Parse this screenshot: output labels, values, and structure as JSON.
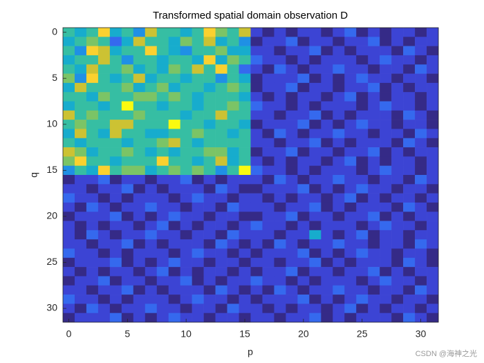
{
  "chart_data": {
    "type": "heatmap",
    "title": "Transformed spatial domain observation D",
    "xlabel": "p",
    "ylabel": "q",
    "watermark": "CSDN @海神之光",
    "colormap": "parula",
    "y_reversed": true,
    "xlim": [
      -0.5,
      31.5
    ],
    "ylim": [
      -0.5,
      31.5
    ],
    "xticks": [
      0,
      5,
      10,
      15,
      20,
      25,
      30
    ],
    "yticks": [
      0,
      5,
      10,
      15,
      20,
      25,
      30
    ],
    "values": [
      [
        0.6,
        0.5,
        0.6,
        0.9,
        0.5,
        0.6,
        0.4,
        0.8,
        0.6,
        0.6,
        0.5,
        0.6,
        0.9,
        0.7,
        0.6,
        0.8,
        0.2,
        0.1,
        0.2,
        0.1,
        0.2,
        0.2,
        0.1,
        0.2,
        0.3,
        0.1,
        0.2,
        0.1,
        0.2,
        0.2,
        0.1,
        0.2
      ],
      [
        0.5,
        0.6,
        0.7,
        0.6,
        0.3,
        0.5,
        0.8,
        0.6,
        0.6,
        0.5,
        0.7,
        0.6,
        0.8,
        0.5,
        0.6,
        0.4,
        0.1,
        0.2,
        0.2,
        0.3,
        0.1,
        0.2,
        0.2,
        0.1,
        0.2,
        0.2,
        0.3,
        0.1,
        0.2,
        0.1,
        0.2,
        0.2
      ],
      [
        0.6,
        0.4,
        0.9,
        0.8,
        0.5,
        0.6,
        0.6,
        0.9,
        0.6,
        0.5,
        0.4,
        0.6,
        0.6,
        0.7,
        0.5,
        0.5,
        0.2,
        0.2,
        0.1,
        0.2,
        0.2,
        0.3,
        0.1,
        0.2,
        0.1,
        0.2,
        0.2,
        0.2,
        0.1,
        0.3,
        0.2,
        0.1
      ],
      [
        0.5,
        0.6,
        0.6,
        0.8,
        0.6,
        0.4,
        0.6,
        0.6,
        0.5,
        0.6,
        0.6,
        0.5,
        0.9,
        0.5,
        0.7,
        0.6,
        0.3,
        0.2,
        0.2,
        0.1,
        0.2,
        0.1,
        0.2,
        0.2,
        0.2,
        0.1,
        0.2,
        0.3,
        0.2,
        0.2,
        0.1,
        0.2
      ],
      [
        0.6,
        0.5,
        0.8,
        0.6,
        0.6,
        0.7,
        0.5,
        0.6,
        0.5,
        0.7,
        0.6,
        0.8,
        0.6,
        0.9,
        0.6,
        0.3,
        0.2,
        0.1,
        0.3,
        0.2,
        0.1,
        0.2,
        0.2,
        0.3,
        0.2,
        0.2,
        0.1,
        0.2,
        0.2,
        0.1,
        0.3,
        0.2
      ],
      [
        0.7,
        0.4,
        0.9,
        0.6,
        0.5,
        0.6,
        0.8,
        0.5,
        0.6,
        0.6,
        0.5,
        0.6,
        0.6,
        0.4,
        0.6,
        0.5,
        0.1,
        0.2,
        0.2,
        0.2,
        0.3,
        0.1,
        0.2,
        0.1,
        0.2,
        0.3,
        0.2,
        0.2,
        0.1,
        0.2,
        0.2,
        0.1
      ],
      [
        0.5,
        0.8,
        0.6,
        0.6,
        0.6,
        0.7,
        0.5,
        0.6,
        0.7,
        0.5,
        0.6,
        0.6,
        0.5,
        0.6,
        0.7,
        0.6,
        0.1,
        0.2,
        0.2,
        0.3,
        0.1,
        0.2,
        0.2,
        0.1,
        0.2,
        0.2,
        0.3,
        0.1,
        0.2,
        0.1,
        0.2,
        0.2
      ],
      [
        0.6,
        0.6,
        0.5,
        0.7,
        0.6,
        0.6,
        0.7,
        0.7,
        0.6,
        0.7,
        0.6,
        0.5,
        0.6,
        0.6,
        0.6,
        0.5,
        0.2,
        0.1,
        0.2,
        0.1,
        0.2,
        0.2,
        0.1,
        0.2,
        0.3,
        0.1,
        0.2,
        0.1,
        0.2,
        0.2,
        0.1,
        0.2
      ],
      [
        0.5,
        0.6,
        0.6,
        0.5,
        0.6,
        1.0,
        0.6,
        0.6,
        0.5,
        0.6,
        0.6,
        0.5,
        0.6,
        0.6,
        0.7,
        0.6,
        0.3,
        0.2,
        0.2,
        0.1,
        0.2,
        0.1,
        0.2,
        0.2,
        0.2,
        0.1,
        0.2,
        0.3,
        0.2,
        0.2,
        0.1,
        0.2
      ],
      [
        0.8,
        0.6,
        0.7,
        0.6,
        0.6,
        0.6,
        0.7,
        0.6,
        0.6,
        0.6,
        0.5,
        0.6,
        0.6,
        0.8,
        0.6,
        0.6,
        0.2,
        0.2,
        0.1,
        0.2,
        0.2,
        0.3,
        0.1,
        0.2,
        0.1,
        0.2,
        0.2,
        0.2,
        0.1,
        0.3,
        0.2,
        0.1
      ],
      [
        0.6,
        0.7,
        0.6,
        0.6,
        0.8,
        0.8,
        0.6,
        0.6,
        0.6,
        1.0,
        0.6,
        0.6,
        0.5,
        0.6,
        0.6,
        0.5,
        0.1,
        0.2,
        0.2,
        0.2,
        0.3,
        0.1,
        0.2,
        0.1,
        0.2,
        0.3,
        0.2,
        0.2,
        0.1,
        0.2,
        0.2,
        0.1
      ],
      [
        0.5,
        0.8,
        0.6,
        0.5,
        0.8,
        0.6,
        0.6,
        0.5,
        0.5,
        0.6,
        0.6,
        0.7,
        0.6,
        0.6,
        0.5,
        0.6,
        0.2,
        0.1,
        0.3,
        0.2,
        0.1,
        0.2,
        0.2,
        0.3,
        0.2,
        0.2,
        0.1,
        0.2,
        0.2,
        0.1,
        0.3,
        0.2
      ],
      [
        0.6,
        0.5,
        0.6,
        0.6,
        0.6,
        0.5,
        0.6,
        0.6,
        0.7,
        0.8,
        0.6,
        0.5,
        0.6,
        0.6,
        0.6,
        0.6,
        0.2,
        0.2,
        0.1,
        0.2,
        0.2,
        0.3,
        0.1,
        0.2,
        0.1,
        0.2,
        0.2,
        0.2,
        0.1,
        0.3,
        0.2,
        0.1
      ],
      [
        0.8,
        0.7,
        0.5,
        0.6,
        0.6,
        0.7,
        0.6,
        0.5,
        0.6,
        0.5,
        0.6,
        0.6,
        0.7,
        0.7,
        0.5,
        0.6,
        0.1,
        0.2,
        0.2,
        0.3,
        0.1,
        0.2,
        0.2,
        0.1,
        0.2,
        0.2,
        0.3,
        0.1,
        0.2,
        0.1,
        0.2,
        0.2
      ],
      [
        0.7,
        0.9,
        0.6,
        0.6,
        0.5,
        0.6,
        0.6,
        0.6,
        0.9,
        0.6,
        0.6,
        0.5,
        0.6,
        0.8,
        0.5,
        0.6,
        0.2,
        0.1,
        0.2,
        0.1,
        0.2,
        0.2,
        0.1,
        0.2,
        0.3,
        0.1,
        0.2,
        0.1,
        0.2,
        0.2,
        0.1,
        0.2
      ],
      [
        0.4,
        0.6,
        0.5,
        0.9,
        0.6,
        0.7,
        0.7,
        0.5,
        0.6,
        0.7,
        0.6,
        0.7,
        0.6,
        0.4,
        0.6,
        1.0,
        0.3,
        0.2,
        0.2,
        0.1,
        0.2,
        0.1,
        0.2,
        0.2,
        0.2,
        0.1,
        0.2,
        0.3,
        0.2,
        0.2,
        0.1,
        0.2
      ],
      [
        0.1,
        0.2,
        0.2,
        0.3,
        0.1,
        0.2,
        0.2,
        0.1,
        0.2,
        0.2,
        0.3,
        0.1,
        0.2,
        0.1,
        0.2,
        0.2,
        0.2,
        0.1,
        0.3,
        0.2,
        0.1,
        0.2,
        0.2,
        0.3,
        0.2,
        0.2,
        0.1,
        0.2,
        0.2,
        0.1,
        0.3,
        0.2
      ],
      [
        0.2,
        0.2,
        0.1,
        0.2,
        0.2,
        0.3,
        0.1,
        0.2,
        0.1,
        0.2,
        0.2,
        0.2,
        0.1,
        0.3,
        0.2,
        0.1,
        0.1,
        0.2,
        0.2,
        0.2,
        0.3,
        0.1,
        0.2,
        0.1,
        0.2,
        0.3,
        0.2,
        0.2,
        0.1,
        0.2,
        0.2,
        0.1
      ],
      [
        0.3,
        0.2,
        0.2,
        0.1,
        0.2,
        0.1,
        0.2,
        0.2,
        0.2,
        0.1,
        0.2,
        0.3,
        0.2,
        0.2,
        0.1,
        0.2,
        0.2,
        0.1,
        0.2,
        0.1,
        0.2,
        0.2,
        0.1,
        0.2,
        0.3,
        0.1,
        0.2,
        0.1,
        0.2,
        0.2,
        0.1,
        0.2
      ],
      [
        0.2,
        0.1,
        0.3,
        0.2,
        0.1,
        0.2,
        0.2,
        0.3,
        0.2,
        0.2,
        0.1,
        0.2,
        0.2,
        0.1,
        0.3,
        0.2,
        0.2,
        0.2,
        0.1,
        0.2,
        0.2,
        0.3,
        0.1,
        0.2,
        0.1,
        0.2,
        0.2,
        0.2,
        0.1,
        0.3,
        0.2,
        0.1
      ],
      [
        0.1,
        0.2,
        0.2,
        0.2,
        0.3,
        0.1,
        0.2,
        0.1,
        0.2,
        0.3,
        0.2,
        0.2,
        0.1,
        0.2,
        0.2,
        0.1,
        0.1,
        0.2,
        0.2,
        0.3,
        0.1,
        0.2,
        0.2,
        0.1,
        0.2,
        0.2,
        0.3,
        0.1,
        0.2,
        0.1,
        0.2,
        0.2
      ],
      [
        0.2,
        0.1,
        0.2,
        0.1,
        0.2,
        0.2,
        0.1,
        0.2,
        0.3,
        0.1,
        0.2,
        0.1,
        0.2,
        0.2,
        0.1,
        0.2,
        0.3,
        0.2,
        0.2,
        0.1,
        0.2,
        0.1,
        0.2,
        0.2,
        0.2,
        0.1,
        0.2,
        0.3,
        0.2,
        0.2,
        0.1,
        0.2
      ],
      [
        0.2,
        0.1,
        0.3,
        0.2,
        0.1,
        0.2,
        0.2,
        0.3,
        0.2,
        0.2,
        0.1,
        0.2,
        0.2,
        0.1,
        0.3,
        0.2,
        0.2,
        0.2,
        0.1,
        0.2,
        0.2,
        0.5,
        0.2,
        0.1,
        0.2,
        0.3,
        0.1,
        0.2,
        0.2,
        0.1,
        0.2,
        0.2
      ],
      [
        0.2,
        0.2,
        0.1,
        0.2,
        0.2,
        0.3,
        0.1,
        0.2,
        0.1,
        0.2,
        0.2,
        0.2,
        0.1,
        0.3,
        0.2,
        0.1,
        0.2,
        0.1,
        0.3,
        0.2,
        0.1,
        0.2,
        0.2,
        0.3,
        0.2,
        0.2,
        0.1,
        0.2,
        0.2,
        0.1,
        0.3,
        0.2
      ],
      [
        0.3,
        0.2,
        0.2,
        0.1,
        0.2,
        0.1,
        0.2,
        0.2,
        0.2,
        0.1,
        0.2,
        0.3,
        0.2,
        0.2,
        0.1,
        0.2,
        0.1,
        0.2,
        0.2,
        0.2,
        0.3,
        0.1,
        0.2,
        0.1,
        0.2,
        0.3,
        0.2,
        0.2,
        0.1,
        0.2,
        0.2,
        0.1
      ],
      [
        0.1,
        0.2,
        0.2,
        0.2,
        0.3,
        0.1,
        0.2,
        0.1,
        0.2,
        0.3,
        0.2,
        0.2,
        0.1,
        0.2,
        0.2,
        0.1,
        0.2,
        0.2,
        0.1,
        0.2,
        0.2,
        0.3,
        0.1,
        0.2,
        0.1,
        0.2,
        0.2,
        0.2,
        0.1,
        0.3,
        0.2,
        0.1
      ],
      [
        0.2,
        0.1,
        0.2,
        0.1,
        0.2,
        0.2,
        0.1,
        0.2,
        0.3,
        0.1,
        0.2,
        0.1,
        0.2,
        0.2,
        0.1,
        0.2,
        0.1,
        0.2,
        0.2,
        0.3,
        0.1,
        0.2,
        0.2,
        0.1,
        0.2,
        0.2,
        0.3,
        0.1,
        0.2,
        0.1,
        0.2,
        0.2
      ],
      [
        0.1,
        0.2,
        0.2,
        0.3,
        0.1,
        0.2,
        0.2,
        0.1,
        0.2,
        0.2,
        0.3,
        0.1,
        0.2,
        0.1,
        0.2,
        0.2,
        0.3,
        0.2,
        0.2,
        0.1,
        0.2,
        0.1,
        0.2,
        0.2,
        0.2,
        0.1,
        0.2,
        0.3,
        0.2,
        0.2,
        0.1,
        0.2
      ],
      [
        0.2,
        0.2,
        0.1,
        0.2,
        0.2,
        0.3,
        0.1,
        0.2,
        0.1,
        0.2,
        0.2,
        0.2,
        0.1,
        0.3,
        0.2,
        0.1,
        0.2,
        0.1,
        0.3,
        0.2,
        0.1,
        0.2,
        0.2,
        0.3,
        0.2,
        0.2,
        0.1,
        0.2,
        0.2,
        0.1,
        0.3,
        0.2
      ],
      [
        0.3,
        0.2,
        0.2,
        0.1,
        0.2,
        0.1,
        0.2,
        0.2,
        0.2,
        0.1,
        0.2,
        0.3,
        0.2,
        0.2,
        0.1,
        0.2,
        0.1,
        0.2,
        0.2,
        0.2,
        0.3,
        0.1,
        0.2,
        0.1,
        0.2,
        0.3,
        0.2,
        0.2,
        0.1,
        0.2,
        0.2,
        0.1
      ],
      [
        0.2,
        0.1,
        0.3,
        0.2,
        0.1,
        0.2,
        0.2,
        0.3,
        0.2,
        0.2,
        0.1,
        0.2,
        0.2,
        0.1,
        0.3,
        0.2,
        0.2,
        0.1,
        0.2,
        0.1,
        0.2,
        0.2,
        0.1,
        0.2,
        0.3,
        0.1,
        0.2,
        0.1,
        0.2,
        0.2,
        0.1,
        0.2
      ],
      [
        0.1,
        0.2,
        0.2,
        0.2,
        0.3,
        0.1,
        0.2,
        0.1,
        0.2,
        0.3,
        0.2,
        0.2,
        0.1,
        0.2,
        0.2,
        0.1,
        0.2,
        0.2,
        0.1,
        0.2,
        0.2,
        0.3,
        0.1,
        0.2,
        0.1,
        0.2,
        0.2,
        0.2,
        0.1,
        0.3,
        0.2,
        0.1
      ]
    ]
  }
}
